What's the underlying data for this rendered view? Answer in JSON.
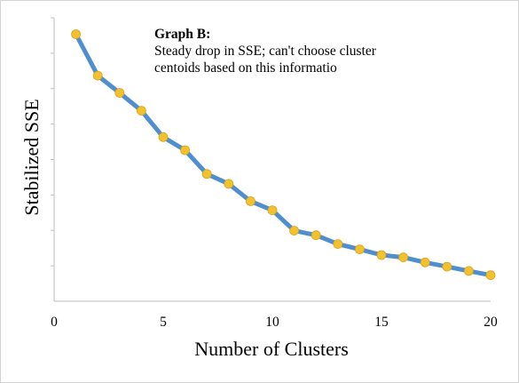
{
  "chart_data": {
    "type": "line",
    "title": "",
    "xlabel": "Number of Clusters",
    "ylabel": "Stabilized SSE",
    "xlim": [
      0,
      20
    ],
    "ylim": [
      0,
      10
    ],
    "x_ticks": [
      0,
      5,
      10,
      15,
      20
    ],
    "y_tick_count": 8,
    "grid": false,
    "legend": "none",
    "series": [
      {
        "color": "#4f8fd0",
        "marker_color": "#f2c12e",
        "x": [
          1,
          2,
          3,
          4,
          5,
          6,
          7,
          8,
          9,
          10,
          11,
          12,
          13,
          14,
          15,
          16,
          17,
          18,
          19,
          20
        ],
        "y": [
          9.42,
          7.96,
          7.35,
          6.72,
          5.79,
          5.33,
          4.49,
          4.14,
          3.53,
          3.21,
          2.49,
          2.33,
          2.02,
          1.83,
          1.63,
          1.55,
          1.37,
          1.22,
          1.07,
          0.92
        ]
      }
    ],
    "annotation": {
      "title": "Graph B:",
      "line1": "Steady drop in SSE; can't choose cluster",
      "line2": "centoids based on this informatio"
    }
  }
}
